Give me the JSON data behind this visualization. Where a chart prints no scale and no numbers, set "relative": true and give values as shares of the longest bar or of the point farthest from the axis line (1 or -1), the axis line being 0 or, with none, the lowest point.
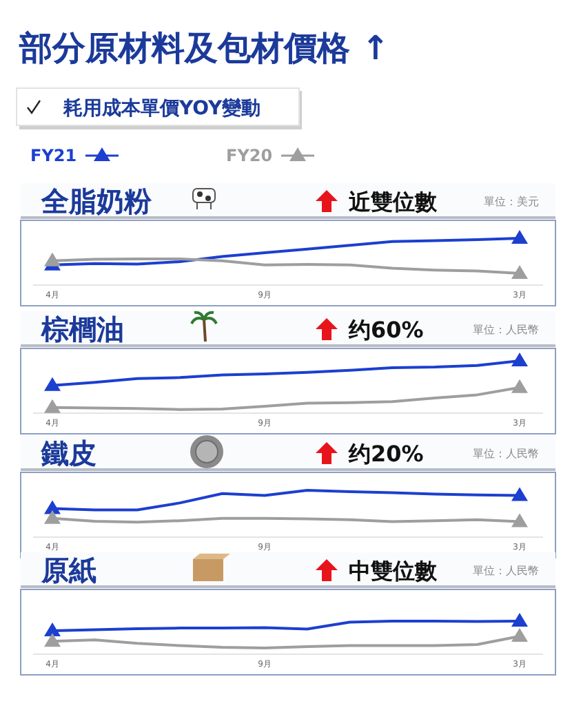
{
  "chart_data": [
    {
      "type": "other",
      "title": "部分原材料及包材價格 ↑",
      "subtitle": "耗用成本單價YOY變動"
    },
    {
      "type": "line",
      "title": "全脂奶粉",
      "annotations": [
        "近雙位數",
        "單位：美元"
      ],
      "categories": [
        "4月",
        null,
        null,
        null,
        null,
        "9月",
        null,
        null,
        null,
        null,
        null,
        "3月"
      ],
      "relative": true,
      "line_style": "solid",
      "legend": "top",
      "series": [
        {
          "name": "FY21",
          "color": "#1c3fcf",
          "values": [
            0.43,
            0.46,
            0.45,
            0.5,
            0.61,
            0.69,
            0.77,
            0.85,
            0.93,
            0.95,
            0.97,
            1
          ]
        },
        {
          "name": "FY20",
          "color": "#9e9e9e",
          "values": [
            0.52,
            0.55,
            0.56,
            0.56,
            0.52,
            0.43,
            0.44,
            0.43,
            0.36,
            0.32,
            0.3,
            0.25
          ]
        }
      ]
    },
    {
      "type": "line",
      "title": "棕櫚油",
      "annotations": [
        "约60%",
        "單位：人民幣"
      ],
      "categories": [
        "4月",
        null,
        null,
        null,
        null,
        "9月",
        null,
        null,
        null,
        null,
        null,
        "3月"
      ],
      "relative": true,
      "line_style": "solid",
      "series": [
        {
          "color": "#1c3fcf",
          "values": [
            0.53,
            0.59,
            0.66,
            0.68,
            0.73,
            0.75,
            0.78,
            0.82,
            0.87,
            0.88,
            0.91,
            1
          ]
        },
        {
          "color": "#9e9e9e",
          "values": [
            0.11,
            0.1,
            0.09,
            0.07,
            0.08,
            0.13,
            0.19,
            0.2,
            0.22,
            0.29,
            0.35,
            0.49
          ]
        }
      ]
    },
    {
      "type": "line",
      "title": "鐵皮",
      "annotations": [
        "约20%",
        "單位：人民幣"
      ],
      "categories": [
        "4月",
        null,
        null,
        null,
        null,
        "9月",
        null,
        null,
        null,
        null,
        null,
        "3月"
      ],
      "relative": true,
      "line_style": "solid",
      "series": [
        {
          "color": "#1c3fcf",
          "values": [
            0.61,
            0.58,
            0.58,
            0.73,
            0.93,
            0.89,
            1,
            0.97,
            0.95,
            0.92,
            0.9,
            0.89
          ]
        },
        {
          "color": "#9e9e9e",
          "values": [
            0.4,
            0.34,
            0.32,
            0.35,
            0.4,
            0.4,
            0.39,
            0.37,
            0.33,
            0.35,
            0.37,
            0.33
          ]
        }
      ]
    },
    {
      "type": "line",
      "title": "原紙",
      "annotations": [
        "中雙位數",
        "單位：人民幣"
      ],
      "categories": [
        "4月",
        null,
        null,
        null,
        null,
        "9月",
        null,
        null,
        null,
        null,
        null,
        "3月"
      ],
      "relative": true,
      "line_style": "solid",
      "series": [
        {
          "color": "#1c3fcf",
          "values": [
            0.71,
            0.74,
            0.77,
            0.79,
            0.79,
            0.8,
            0.76,
            0.97,
            1,
            1,
            0.99,
            1
          ]
        },
        {
          "color": "#9e9e9e",
          "values": [
            0.39,
            0.43,
            0.33,
            0.26,
            0.21,
            0.19,
            0.23,
            0.26,
            0.26,
            0.26,
            0.29,
            0.54
          ]
        }
      ]
    }
  ]
}
